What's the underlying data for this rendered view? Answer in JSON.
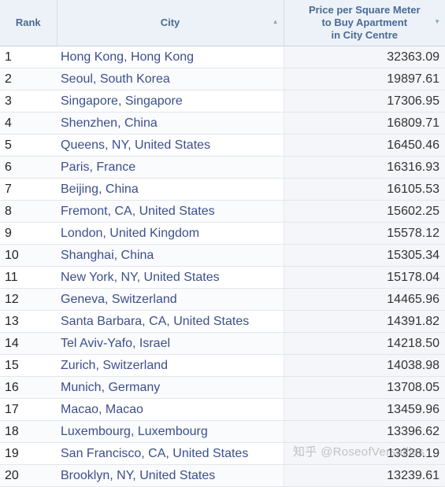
{
  "header": {
    "rank": "Rank",
    "city": "City",
    "price_line1": "Price per Square Meter",
    "price_line2": "to Buy Apartment",
    "price_line3": "in City Centre",
    "city_sort_icon": "sort-ascending-icon",
    "price_sort_icon": "sort-descending-icon"
  },
  "rows": [
    {
      "rank": "1",
      "city": "Hong Kong, Hong Kong",
      "price": "32363.09"
    },
    {
      "rank": "2",
      "city": "Seoul, South Korea",
      "price": "19897.61"
    },
    {
      "rank": "3",
      "city": "Singapore, Singapore",
      "price": "17306.95"
    },
    {
      "rank": "4",
      "city": "Shenzhen, China",
      "price": "16809.71"
    },
    {
      "rank": "5",
      "city": "Queens, NY, United States",
      "price": "16450.46"
    },
    {
      "rank": "6",
      "city": "Paris, France",
      "price": "16316.93"
    },
    {
      "rank": "7",
      "city": "Beijing, China",
      "price": "16105.53"
    },
    {
      "rank": "8",
      "city": "Fremont, CA, United States",
      "price": "15602.25"
    },
    {
      "rank": "9",
      "city": "London, United Kingdom",
      "price": "15578.12"
    },
    {
      "rank": "10",
      "city": "Shanghai, China",
      "price": "15305.34"
    },
    {
      "rank": "11",
      "city": "New York, NY, United States",
      "price": "15178.04"
    },
    {
      "rank": "12",
      "city": "Geneva, Switzerland",
      "price": "14465.96"
    },
    {
      "rank": "13",
      "city": "Santa Barbara, CA, United States",
      "price": "14391.82"
    },
    {
      "rank": "14",
      "city": "Tel Aviv-Yafo, Israel",
      "price": "14218.50"
    },
    {
      "rank": "15",
      "city": "Zurich, Switzerland",
      "price": "14038.98"
    },
    {
      "rank": "16",
      "city": "Munich, Germany",
      "price": "13708.05"
    },
    {
      "rank": "17",
      "city": "Macao, Macao",
      "price": "13459.96"
    },
    {
      "rank": "18",
      "city": "Luxembourg, Luxembourg",
      "price": "13396.62"
    },
    {
      "rank": "19",
      "city": "San Francisco, CA, United States",
      "price": "13328.19"
    },
    {
      "rank": "20",
      "city": "Brooklyn, NY, United States",
      "price": "13239.61"
    }
  ],
  "watermark": "知乎 @RoseofVersailles",
  "colors": {
    "header_bg": "#edf2f8",
    "header_text": "#4a6a95",
    "city_link": "#3c4f8c",
    "price_column_bg": "#f4f6f9"
  }
}
